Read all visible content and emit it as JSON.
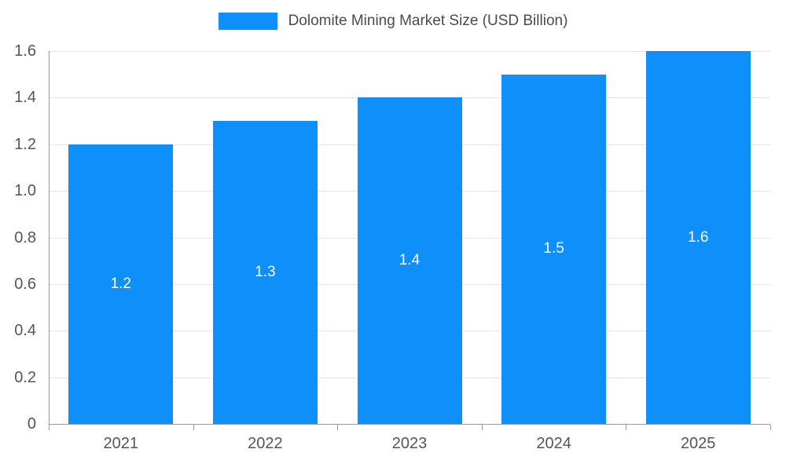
{
  "chart_data": {
    "type": "bar",
    "title": "Dolomite Mining Market Size (USD Billion)",
    "categories": [
      "2021",
      "2022",
      "2023",
      "2024",
      "2025"
    ],
    "values": [
      1.2,
      1.3,
      1.4,
      1.5,
      1.6
    ],
    "labels": [
      "1.2",
      "1.3",
      "1.4",
      "1.5",
      "1.6"
    ],
    "xlabel": "",
    "ylabel": "",
    "ylim": [
      0,
      1.6
    ],
    "ytick_step": 0.2,
    "yticks": [
      "0",
      "0.2",
      "0.4",
      "0.6",
      "0.8",
      "1.0",
      "1.2",
      "1.4",
      "1.6"
    ],
    "grid": true,
    "legend_position": "top",
    "bar_color": "#0f8ff9",
    "bar_label_color": "#ffffff",
    "axis_text_color": "#555555",
    "title_color": "#4a4a4a",
    "grid_color": "#e4e4e4",
    "axis_line_color": "#9a9a9a",
    "background_color": "#ffffff"
  }
}
